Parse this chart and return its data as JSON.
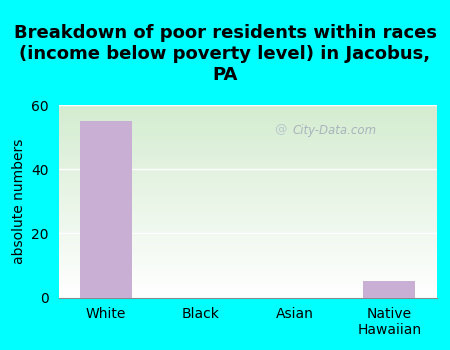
{
  "title": "Breakdown of poor residents within races\n(income below poverty level) in Jacobus,\nPA",
  "categories": [
    "White",
    "Black",
    "Asian",
    "Native\nHawaiian"
  ],
  "values": [
    55,
    0,
    0,
    5
  ],
  "bar_color": "#c9afd4",
  "ylabel": "absolute numbers",
  "ylim": [
    0,
    60
  ],
  "yticks": [
    0,
    20,
    40,
    60
  ],
  "background_outer": "#00ffff",
  "grad_top": "#daecd8",
  "grad_bottom": "#f5f8f0",
  "grad_right": "#e8f0e0",
  "title_fontsize": 13,
  "ylabel_fontsize": 10,
  "tick_fontsize": 10,
  "watermark": "City-Data.com"
}
